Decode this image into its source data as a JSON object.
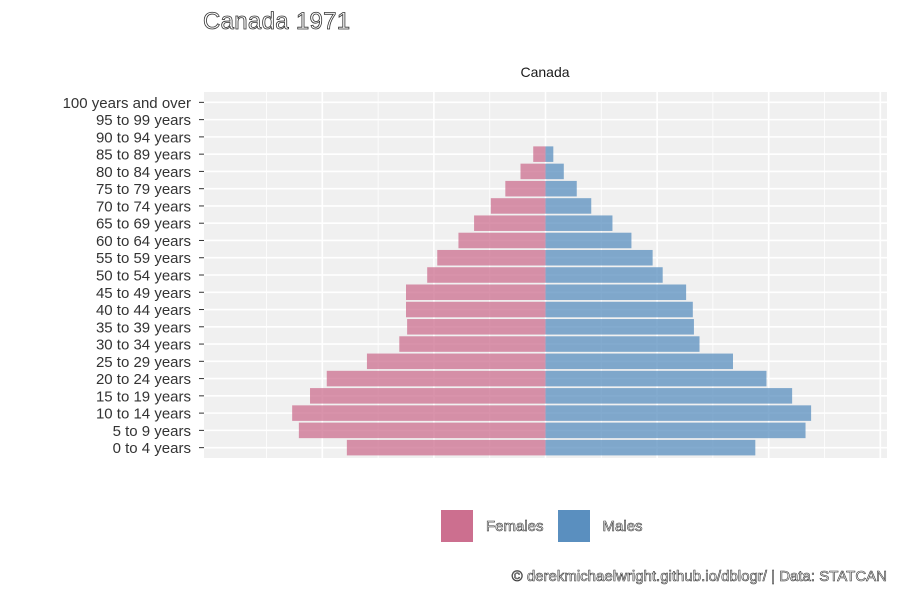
{
  "title": "Canada 1971",
  "caption": "© derekmichaelwright.github.io/dblogr/ | Data: STATCAN",
  "chart_data": {
    "type": "bar",
    "orientation": "horizontal",
    "layout": "population-pyramid",
    "panel_title": "Canada",
    "categories": [
      "0 to 4 years",
      "5 to 9 years",
      "10 to 14 years",
      "15 to 19 years",
      "20 to 24 years",
      "25 to 29 years",
      "30 to 34 years",
      "35 to 39 years",
      "40 to 44 years",
      "45 to 49 years",
      "50 to 54 years",
      "55 to 59 years",
      "60 to 64 years",
      "65 to 69 years",
      "70 to 74 years",
      "75 to 79 years",
      "80 to 84 years",
      "85 to 89 years",
      "90 to 94 years",
      "95 to 99 years",
      "100 years and over"
    ],
    "series": [
      {
        "name": "Females",
        "color": "#cc6f8f",
        "values": [
          890000,
          1105000,
          1135000,
          1055000,
          980000,
          800000,
          655000,
          620000,
          625000,
          625000,
          530000,
          485000,
          390000,
          320000,
          245000,
          180000,
          112000,
          55000,
          0,
          0,
          0
        ]
      },
      {
        "name": "Males",
        "color": "#5a8fbf",
        "values": [
          940000,
          1165000,
          1190000,
          1105000,
          990000,
          840000,
          690000,
          665000,
          660000,
          630000,
          525000,
          480000,
          385000,
          300000,
          205000,
          140000,
          82000,
          35000,
          0,
          0,
          0
        ]
      }
    ],
    "legend_position": "bottom",
    "grid": true,
    "xlim": [
      -1530000,
      1530000
    ]
  }
}
